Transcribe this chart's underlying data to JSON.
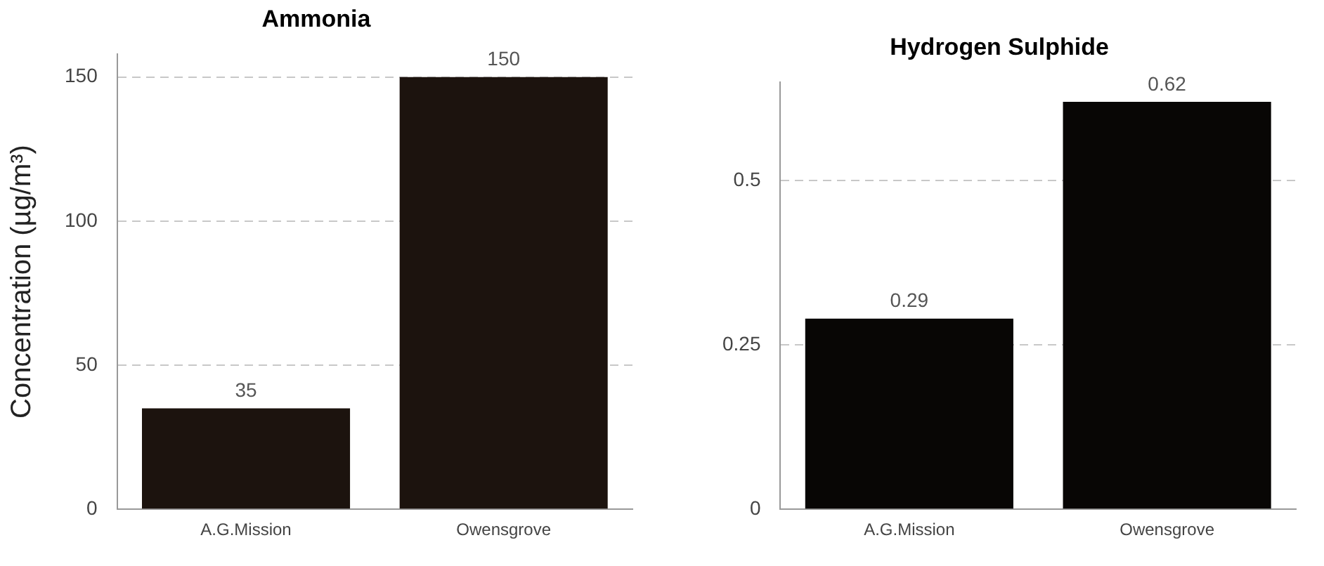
{
  "chart_data": [
    {
      "type": "bar",
      "title": "Ammonia",
      "ylabel": "Concentration (µg/m³)",
      "categories": [
        "A.G.Mission",
        "Owensgrove"
      ],
      "values": [
        35,
        150
      ],
      "color": "#1c130e",
      "ylim": [
        0,
        158
      ],
      "yticks": [
        0,
        50,
        100,
        150
      ],
      "grid": "y",
      "data_labels": true,
      "legend": false
    },
    {
      "type": "bar",
      "title": "Hydrogen Sulphide",
      "categories": [
        "A.G.Mission",
        "Owensgrove"
      ],
      "values": [
        0.29,
        0.62
      ],
      "color": "#080605",
      "ylim": [
        0,
        0.65
      ],
      "yticks": [
        0,
        0.25,
        0.5
      ],
      "grid": "y",
      "data_labels": true,
      "legend": false
    }
  ]
}
